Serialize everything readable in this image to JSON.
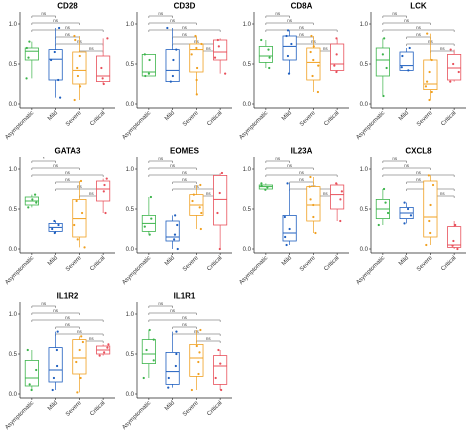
{
  "chart_data": {
    "type": "box",
    "groups": [
      "Asymptomatic",
      "Mild",
      "Severe",
      "Critical"
    ],
    "group_colors": [
      "#3cb44b",
      "#1f5fbf",
      "#f0a020",
      "#e8505b"
    ],
    "y_ticks": [
      0.0,
      0.5,
      1.0
    ],
    "ylim": [
      -0.05,
      1.15
    ],
    "comparisons": [
      {
        "from": "Asymptomatic",
        "to": "Mild"
      },
      {
        "from": "Asymptomatic",
        "to": "Severe"
      },
      {
        "from": "Asymptomatic",
        "to": "Critical"
      },
      {
        "from": "Mild",
        "to": "Severe"
      },
      {
        "from": "Mild",
        "to": "Critical"
      },
      {
        "from": "Severe",
        "to": "Critical"
      }
    ],
    "panels": [
      {
        "title": "CD28",
        "significance": [
          "ns",
          "ns",
          "ns",
          "ns",
          "ns",
          "ns"
        ],
        "boxes": [
          {
            "q1": 0.55,
            "median": 0.66,
            "q3": 0.7,
            "min": 0.32,
            "max": 0.78,
            "points": [
              0.32,
              0.58,
              0.7,
              0.78
            ]
          },
          {
            "q1": 0.3,
            "median": 0.56,
            "q3": 0.68,
            "min": 0.08,
            "max": 0.95,
            "points": [
              0.08,
              0.3,
              0.55,
              0.65,
              0.95
            ]
          },
          {
            "q1": 0.25,
            "median": 0.42,
            "q3": 0.65,
            "min": 0.05,
            "max": 0.85,
            "points": [
              0.05,
              0.22,
              0.35,
              0.45,
              0.6,
              0.8,
              0.85
            ]
          },
          {
            "q1": 0.28,
            "median": 0.35,
            "q3": 0.6,
            "min": 0.25,
            "max": 0.82,
            "points": [
              0.25,
              0.32,
              0.45,
              0.82
            ]
          }
        ]
      },
      {
        "title": "CD3D",
        "significance": [
          "ns",
          "ns",
          "ns",
          "ns",
          "ns",
          "ns"
        ],
        "boxes": [
          {
            "q1": 0.35,
            "median": 0.4,
            "q3": 0.62,
            "min": 0.35,
            "max": 0.62,
            "points": [
              0.35,
              0.38,
              0.55,
              0.62
            ]
          },
          {
            "q1": 0.28,
            "median": 0.42,
            "q3": 0.68,
            "min": 0.28,
            "max": 0.95,
            "points": [
              0.28,
              0.35,
              0.55,
              0.68,
              0.95
            ]
          },
          {
            "q1": 0.4,
            "median": 0.68,
            "q3": 0.75,
            "min": 0.12,
            "max": 0.85,
            "points": [
              0.12,
              0.3,
              0.45,
              0.62,
              0.7,
              0.75,
              0.85
            ]
          },
          {
            "q1": 0.55,
            "median": 0.65,
            "q3": 0.8,
            "min": 0.38,
            "max": 0.82,
            "points": [
              0.38,
              0.58,
              0.72,
              0.8
            ]
          }
        ]
      },
      {
        "title": "CD8A",
        "significance": [
          "ns",
          "ns",
          "ns",
          "ns",
          "ns",
          "ns"
        ],
        "boxes": [
          {
            "q1": 0.52,
            "median": 0.6,
            "q3": 0.72,
            "min": 0.45,
            "max": 0.8,
            "points": [
              0.45,
              0.58,
              0.68,
              0.8
            ]
          },
          {
            "q1": 0.55,
            "median": 0.72,
            "q3": 0.85,
            "min": 0.38,
            "max": 0.92,
            "points": [
              0.38,
              0.6,
              0.75,
              0.85,
              0.92
            ]
          },
          {
            "q1": 0.3,
            "median": 0.52,
            "q3": 0.7,
            "min": 0.15,
            "max": 0.85,
            "points": [
              0.15,
              0.35,
              0.48,
              0.55,
              0.65,
              0.72,
              0.85
            ]
          },
          {
            "q1": 0.42,
            "median": 0.5,
            "q3": 0.75,
            "min": 0.4,
            "max": 0.82,
            "points": [
              0.4,
              0.48,
              0.62,
              0.82
            ]
          }
        ]
      },
      {
        "title": "LCK",
        "significance": [
          "ns",
          "ns",
          "ns",
          "ns",
          "ns",
          "ns"
        ],
        "boxes": [
          {
            "q1": 0.35,
            "median": 0.55,
            "q3": 0.7,
            "min": 0.1,
            "max": 0.82,
            "points": [
              0.1,
              0.45,
              0.62,
              0.82
            ]
          },
          {
            "q1": 0.42,
            "median": 0.48,
            "q3": 0.65,
            "min": 0.42,
            "max": 0.7,
            "points": [
              0.42,
              0.46,
              0.6,
              0.7
            ]
          },
          {
            "q1": 0.18,
            "median": 0.25,
            "q3": 0.55,
            "min": 0.05,
            "max": 0.88,
            "points": [
              0.05,
              0.15,
              0.22,
              0.28,
              0.4,
              0.55,
              0.88
            ]
          },
          {
            "q1": 0.3,
            "median": 0.45,
            "q3": 0.62,
            "min": 0.28,
            "max": 0.68,
            "points": [
              0.28,
              0.4,
              0.5,
              0.68
            ]
          }
        ]
      },
      {
        "title": "GATA3",
        "significance": [
          "*",
          "ns",
          "ns",
          "ns",
          "ns",
          "ns"
        ],
        "boxes": [
          {
            "q1": 0.55,
            "median": 0.6,
            "q3": 0.65,
            "min": 0.52,
            "max": 0.68,
            "points": [
              0.52,
              0.58,
              0.62,
              0.68
            ]
          },
          {
            "q1": 0.22,
            "median": 0.27,
            "q3": 0.32,
            "min": 0.2,
            "max": 0.35,
            "points": [
              0.2,
              0.25,
              0.3,
              0.35
            ]
          },
          {
            "q1": 0.15,
            "median": 0.38,
            "q3": 0.62,
            "min": 0.02,
            "max": 0.85,
            "points": [
              0.02,
              0.12,
              0.3,
              0.45,
              0.6,
              0.85
            ]
          },
          {
            "q1": 0.6,
            "median": 0.75,
            "q3": 0.85,
            "min": 0.45,
            "max": 0.88,
            "points": [
              0.45,
              0.72,
              0.8,
              0.88
            ]
          }
        ]
      },
      {
        "title": "EOMES",
        "significance": [
          "ns",
          "ns",
          "ns",
          "ns",
          "ns",
          "ns"
        ],
        "boxes": [
          {
            "q1": 0.22,
            "median": 0.32,
            "q3": 0.42,
            "min": 0.18,
            "max": 0.65,
            "points": [
              0.18,
              0.28,
              0.38,
              0.65
            ]
          },
          {
            "q1": 0.1,
            "median": 0.15,
            "q3": 0.35,
            "min": 0.0,
            "max": 0.42,
            "points": [
              0.0,
              0.12,
              0.18,
              0.3,
              0.42
            ]
          },
          {
            "q1": 0.42,
            "median": 0.55,
            "q3": 0.68,
            "min": 0.25,
            "max": 0.8,
            "points": [
              0.25,
              0.45,
              0.52,
              0.6,
              0.68,
              0.8
            ]
          },
          {
            "q1": 0.3,
            "median": 0.62,
            "q3": 0.92,
            "min": 0.0,
            "max": 0.95,
            "points": [
              0.0,
              0.45,
              0.7,
              0.95
            ]
          }
        ]
      },
      {
        "title": "IL23A",
        "significance": [
          "ns",
          "ns",
          "ns",
          "ns",
          "ns",
          "ns"
        ],
        "boxes": [
          {
            "q1": 0.75,
            "median": 0.78,
            "q3": 0.8,
            "min": 0.74,
            "max": 0.82,
            "points": [
              0.74,
              0.77,
              0.79,
              0.82
            ]
          },
          {
            "q1": 0.1,
            "median": 0.2,
            "q3": 0.42,
            "min": 0.05,
            "max": 0.82,
            "points": [
              0.05,
              0.15,
              0.25,
              0.4,
              0.82
            ]
          },
          {
            "q1": 0.35,
            "median": 0.55,
            "q3": 0.78,
            "min": 0.2,
            "max": 0.9,
            "points": [
              0.2,
              0.4,
              0.55,
              0.62,
              0.78,
              0.9
            ]
          },
          {
            "q1": 0.5,
            "median": 0.68,
            "q3": 0.8,
            "min": 0.35,
            "max": 0.82,
            "points": [
              0.35,
              0.62,
              0.72,
              0.82
            ]
          }
        ]
      },
      {
        "title": "CXCL8",
        "significance": [
          "ns",
          "ns",
          "ns",
          "ns",
          "ns",
          "ns"
        ],
        "boxes": [
          {
            "q1": 0.38,
            "median": 0.5,
            "q3": 0.62,
            "min": 0.3,
            "max": 0.75,
            "points": [
              0.3,
              0.45,
              0.58,
              0.75
            ]
          },
          {
            "q1": 0.38,
            "median": 0.45,
            "q3": 0.52,
            "min": 0.32,
            "max": 0.58,
            "points": [
              0.32,
              0.42,
              0.5,
              0.58
            ]
          },
          {
            "q1": 0.15,
            "median": 0.4,
            "q3": 0.85,
            "min": 0.05,
            "max": 0.92,
            "points": [
              0.05,
              0.2,
              0.35,
              0.55,
              0.8,
              0.92
            ]
          },
          {
            "q1": 0.02,
            "median": 0.05,
            "q3": 0.28,
            "min": 0.0,
            "max": 0.35,
            "points": [
              0.0,
              0.04,
              0.1,
              0.3
            ]
          }
        ]
      },
      {
        "title": "IL1R2",
        "significance": [
          "ns",
          "ns",
          "ns",
          "ns",
          "ns",
          "ns"
        ],
        "boxes": [
          {
            "q1": 0.1,
            "median": 0.2,
            "q3": 0.42,
            "min": 0.05,
            "max": 0.55,
            "points": [
              0.05,
              0.12,
              0.3,
              0.55
            ]
          },
          {
            "q1": 0.15,
            "median": 0.3,
            "q3": 0.58,
            "min": 0.05,
            "max": 0.78,
            "points": [
              0.05,
              0.2,
              0.35,
              0.55,
              0.78
            ]
          },
          {
            "q1": 0.25,
            "median": 0.45,
            "q3": 0.68,
            "min": 0.02,
            "max": 0.72,
            "points": [
              0.02,
              0.2,
              0.4,
              0.55,
              0.65,
              0.72
            ]
          },
          {
            "q1": 0.5,
            "median": 0.55,
            "q3": 0.6,
            "min": 0.48,
            "max": 0.62,
            "points": [
              0.48,
              0.52,
              0.58,
              0.62
            ]
          }
        ]
      },
      {
        "title": "IL1R1",
        "significance": [
          "ns",
          "ns",
          "ns",
          "ns",
          "ns",
          "ns"
        ],
        "boxes": [
          {
            "q1": 0.38,
            "median": 0.5,
            "q3": 0.68,
            "min": 0.2,
            "max": 0.8,
            "points": [
              0.2,
              0.42,
              0.55,
              0.68,
              0.8
            ]
          },
          {
            "q1": 0.12,
            "median": 0.28,
            "q3": 0.52,
            "min": 0.08,
            "max": 0.78,
            "points": [
              0.08,
              0.2,
              0.35,
              0.5,
              0.78
            ]
          },
          {
            "q1": 0.22,
            "median": 0.45,
            "q3": 0.62,
            "min": 0.05,
            "max": 0.8,
            "points": [
              0.05,
              0.25,
              0.4,
              0.52,
              0.6,
              0.8
            ]
          },
          {
            "q1": 0.12,
            "median": 0.35,
            "q3": 0.48,
            "min": 0.05,
            "max": 0.55,
            "points": [
              0.05,
              0.2,
              0.38,
              0.55
            ]
          }
        ]
      }
    ]
  }
}
